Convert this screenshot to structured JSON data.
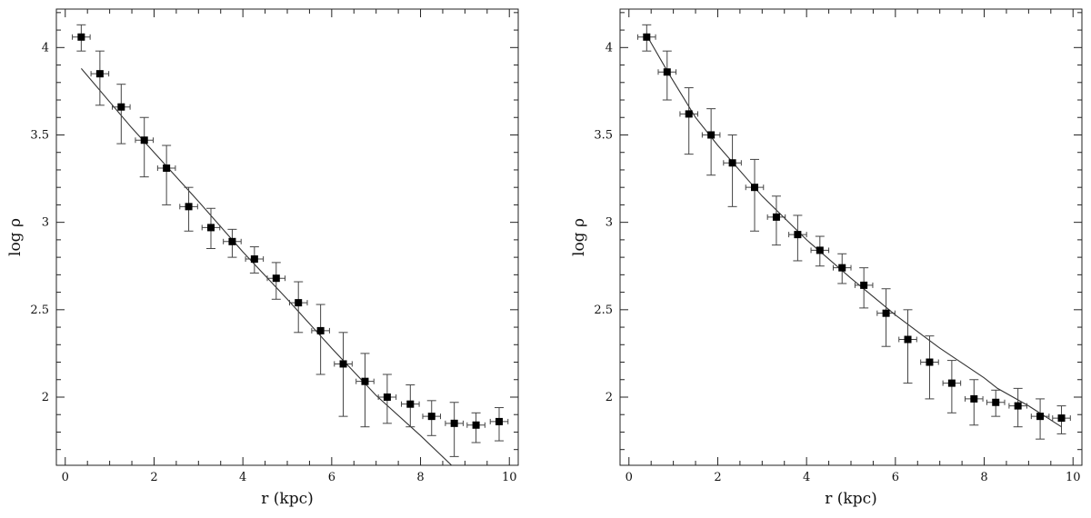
{
  "chart_data": [
    {
      "type": "scatter",
      "title": "",
      "xlabel": "r (kpc)",
      "ylabel": "log ρ",
      "xlim": [
        -0.2,
        10.2
      ],
      "ylim": [
        1.61,
        4.22
      ],
      "xticks": [
        0,
        2,
        4,
        6,
        8,
        10
      ],
      "xtick_labels": [
        "0",
        "2",
        "4",
        "6",
        "8",
        "10"
      ],
      "yticks": [
        2,
        2.5,
        3,
        3.5,
        4
      ],
      "ytick_labels": [
        "2",
        "2.5",
        "3",
        "3.5",
        "4"
      ],
      "grid": false,
      "legend": "none",
      "series": [
        {
          "kind": "data",
          "x": [
            0.36,
            0.78,
            1.26,
            1.78,
            2.28,
            2.78,
            3.28,
            3.76,
            4.26,
            4.75,
            5.25,
            5.75,
            6.26,
            6.75,
            7.25,
            7.77,
            8.25,
            8.76,
            9.25,
            9.77
          ],
          "y": [
            4.06,
            3.85,
            3.66,
            3.47,
            3.31,
            3.09,
            2.97,
            2.89,
            2.79,
            2.68,
            2.54,
            2.38,
            2.19,
            2.09,
            2.0,
            1.96,
            1.89,
            1.85,
            1.84,
            1.86
          ],
          "yerr_low": [
            0.08,
            0.18,
            0.21,
            0.21,
            0.21,
            0.14,
            0.12,
            0.09,
            0.08,
            0.12,
            0.17,
            0.25,
            0.3,
            0.26,
            0.15,
            0.13,
            0.11,
            0.19,
            0.1,
            0.11
          ],
          "yerr_high": [
            0.07,
            0.13,
            0.13,
            0.13,
            0.13,
            0.11,
            0.11,
            0.07,
            0.07,
            0.09,
            0.12,
            0.15,
            0.18,
            0.16,
            0.13,
            0.11,
            0.09,
            0.12,
            0.07,
            0.08
          ],
          "xerr": [
            0.2,
            0.2,
            0.2,
            0.2,
            0.2,
            0.2,
            0.2,
            0.2,
            0.2,
            0.2,
            0.2,
            0.2,
            0.2,
            0.2,
            0.2,
            0.2,
            0.2,
            0.2,
            0.2,
            0.2
          ]
        },
        {
          "kind": "fit-line",
          "x": [
            0.36,
            1.5,
            3.0,
            4.0,
            5.0,
            6.0,
            7.0,
            8.0,
            8.7
          ],
          "y": [
            3.88,
            3.54,
            3.12,
            2.83,
            2.56,
            2.28,
            2.01,
            1.78,
            1.61
          ]
        }
      ]
    },
    {
      "type": "scatter",
      "title": "",
      "xlabel": "r (kpc)",
      "ylabel": "log ρ",
      "xlim": [
        -0.2,
        10.2
      ],
      "ylim": [
        1.61,
        4.22
      ],
      "xticks": [
        0,
        2,
        4,
        6,
        8,
        10
      ],
      "xtick_labels": [
        "0",
        "2",
        "4",
        "6",
        "8",
        "10"
      ],
      "yticks": [
        2,
        2.5,
        3,
        3.5,
        4
      ],
      "ytick_labels": [
        "2",
        "2.5",
        "3",
        "3.5",
        "4"
      ],
      "grid": false,
      "legend": "none",
      "series": [
        {
          "kind": "data",
          "x": [
            0.4,
            0.86,
            1.35,
            1.85,
            2.33,
            2.83,
            3.32,
            3.8,
            4.3,
            4.8,
            5.29,
            5.79,
            6.28,
            6.77,
            7.27,
            7.77,
            8.26,
            8.76,
            9.26,
            9.74
          ],
          "y": [
            4.06,
            3.86,
            3.62,
            3.5,
            3.34,
            3.2,
            3.03,
            2.93,
            2.84,
            2.74,
            2.64,
            2.48,
            2.33,
            2.2,
            2.08,
            1.99,
            1.97,
            1.95,
            1.89,
            1.88
          ],
          "yerr_low": [
            0.08,
            0.16,
            0.23,
            0.23,
            0.25,
            0.25,
            0.16,
            0.15,
            0.09,
            0.09,
            0.13,
            0.19,
            0.25,
            0.21,
            0.17,
            0.15,
            0.08,
            0.12,
            0.13,
            0.09
          ],
          "yerr_high": [
            0.07,
            0.12,
            0.15,
            0.15,
            0.16,
            0.16,
            0.12,
            0.11,
            0.08,
            0.08,
            0.1,
            0.14,
            0.17,
            0.15,
            0.13,
            0.11,
            0.07,
            0.1,
            0.1,
            0.07
          ],
          "xerr": [
            0.2,
            0.2,
            0.2,
            0.2,
            0.2,
            0.2,
            0.2,
            0.2,
            0.2,
            0.2,
            0.2,
            0.2,
            0.2,
            0.2,
            0.2,
            0.2,
            0.2,
            0.2,
            0.2,
            0.2
          ]
        },
        {
          "kind": "fit-line",
          "x": [
            0.4,
            0.9,
            1.5,
            2.0,
            3.0,
            4.0,
            5.0,
            6.0,
            7.0,
            8.0,
            8.3,
            9.0,
            9.74
          ],
          "y": [
            4.07,
            3.85,
            3.6,
            3.44,
            3.15,
            2.9,
            2.68,
            2.47,
            2.28,
            2.11,
            2.05,
            1.95,
            1.83
          ]
        }
      ]
    }
  ]
}
